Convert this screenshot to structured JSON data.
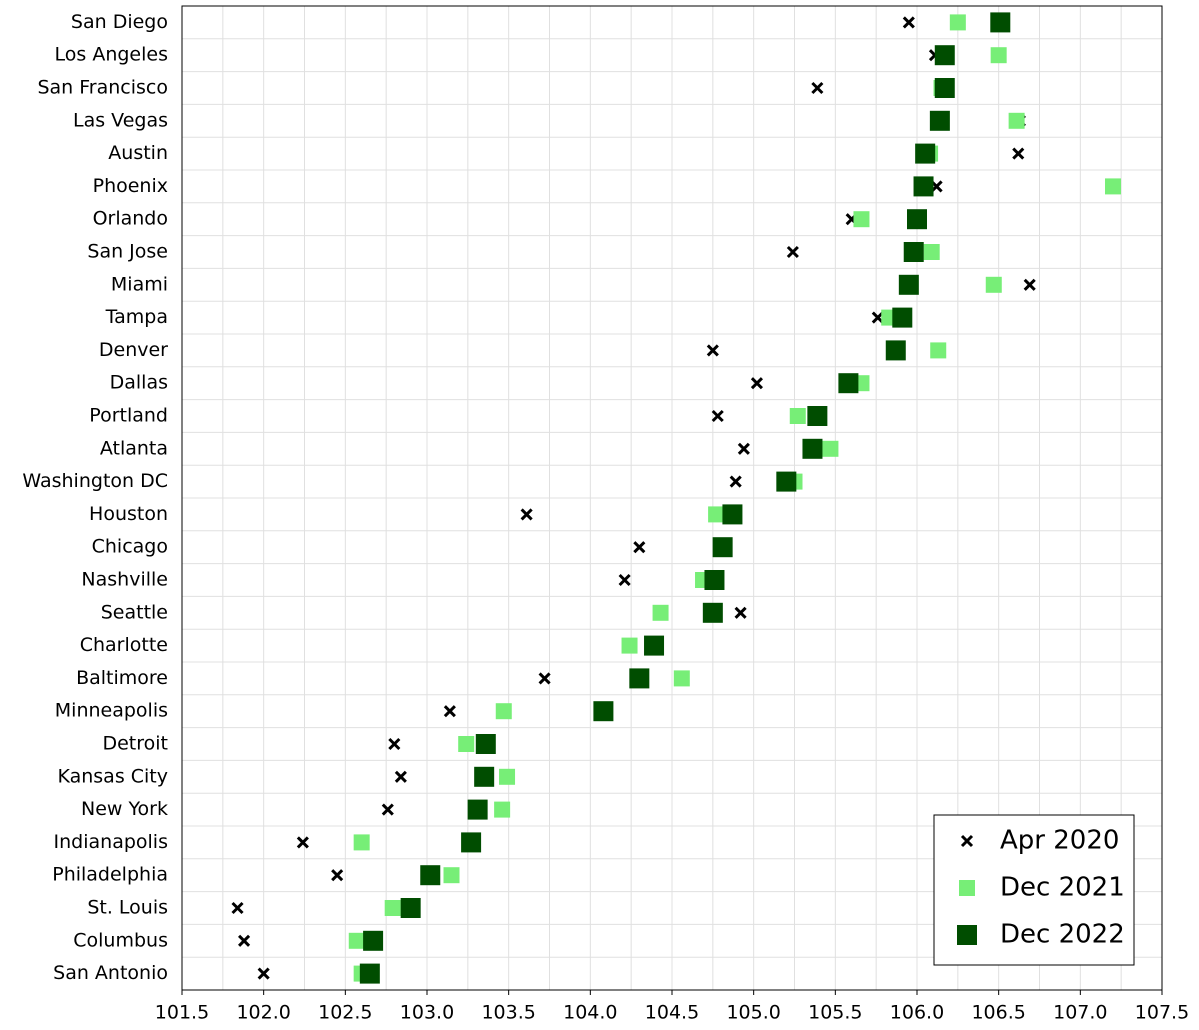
{
  "chart_data": {
    "type": "dot",
    "categories": [
      "San Diego",
      "Los Angeles",
      "San Francisco",
      "Las Vegas",
      "Austin",
      "Phoenix",
      "Orlando",
      "San Jose",
      "Miami",
      "Tampa",
      "Denver",
      "Dallas",
      "Portland",
      "Atlanta",
      "Washington DC",
      "Houston",
      "Chicago",
      "Nashville",
      "Seattle",
      "Charlotte",
      "Baltimore",
      "Minneapolis",
      "Detroit",
      "Kansas City",
      "New York",
      "Indianapolis",
      "Philadelphia",
      "St. Louis",
      "Columbus",
      "San Antonio"
    ],
    "series": [
      {
        "name": "Apr 2020",
        "color": "#000000",
        "marker": "x",
        "values": [
          105.95,
          106.11,
          105.39,
          106.63,
          106.62,
          106.12,
          105.6,
          105.24,
          106.69,
          105.76,
          104.75,
          105.02,
          104.78,
          104.94,
          104.89,
          103.61,
          104.3,
          104.21,
          104.92,
          104.39,
          103.72,
          103.14,
          102.8,
          102.84,
          102.76,
          102.24,
          102.45,
          101.84,
          101.88,
          102.0
        ]
      },
      {
        "name": "Dec 2021",
        "color": "#77ee77",
        "marker": "square",
        "values": [
          106.25,
          106.5,
          106.15,
          106.61,
          106.08,
          107.2,
          105.66,
          106.09,
          106.47,
          105.83,
          106.13,
          105.66,
          105.27,
          105.47,
          105.25,
          104.77,
          104.81,
          104.69,
          104.43,
          104.24,
          104.56,
          103.47,
          103.24,
          103.49,
          103.46,
          102.6,
          103.15,
          102.79,
          102.57,
          102.6
        ]
      },
      {
        "name": "Dec 2022",
        "color": "#004d00",
        "marker": "big-square",
        "values": [
          106.51,
          106.17,
          106.17,
          106.14,
          106.05,
          106.04,
          106.0,
          105.98,
          105.95,
          105.91,
          105.87,
          105.58,
          105.39,
          105.36,
          105.2,
          104.87,
          104.81,
          104.76,
          104.75,
          104.39,
          104.3,
          104.08,
          103.36,
          103.35,
          103.31,
          103.27,
          103.02,
          102.9,
          102.67,
          102.65
        ]
      }
    ],
    "xlim": [
      101.5,
      107.5
    ],
    "xticks": [
      101.5,
      {
        "value": 102,
        "label": "102.0"
      },
      102.5,
      {
        "value": 103,
        "label": "103.0"
      },
      103.5,
      {
        "value": 104,
        "label": "104.0"
      },
      104.5,
      {
        "value": 105,
        "label": "105.0"
      },
      105.5,
      {
        "value": 106,
        "label": "106.0"
      },
      106.5,
      {
        "value": 107,
        "label": "107.0"
      },
      107.5
    ],
    "grid": true,
    "legend": "lower right"
  }
}
